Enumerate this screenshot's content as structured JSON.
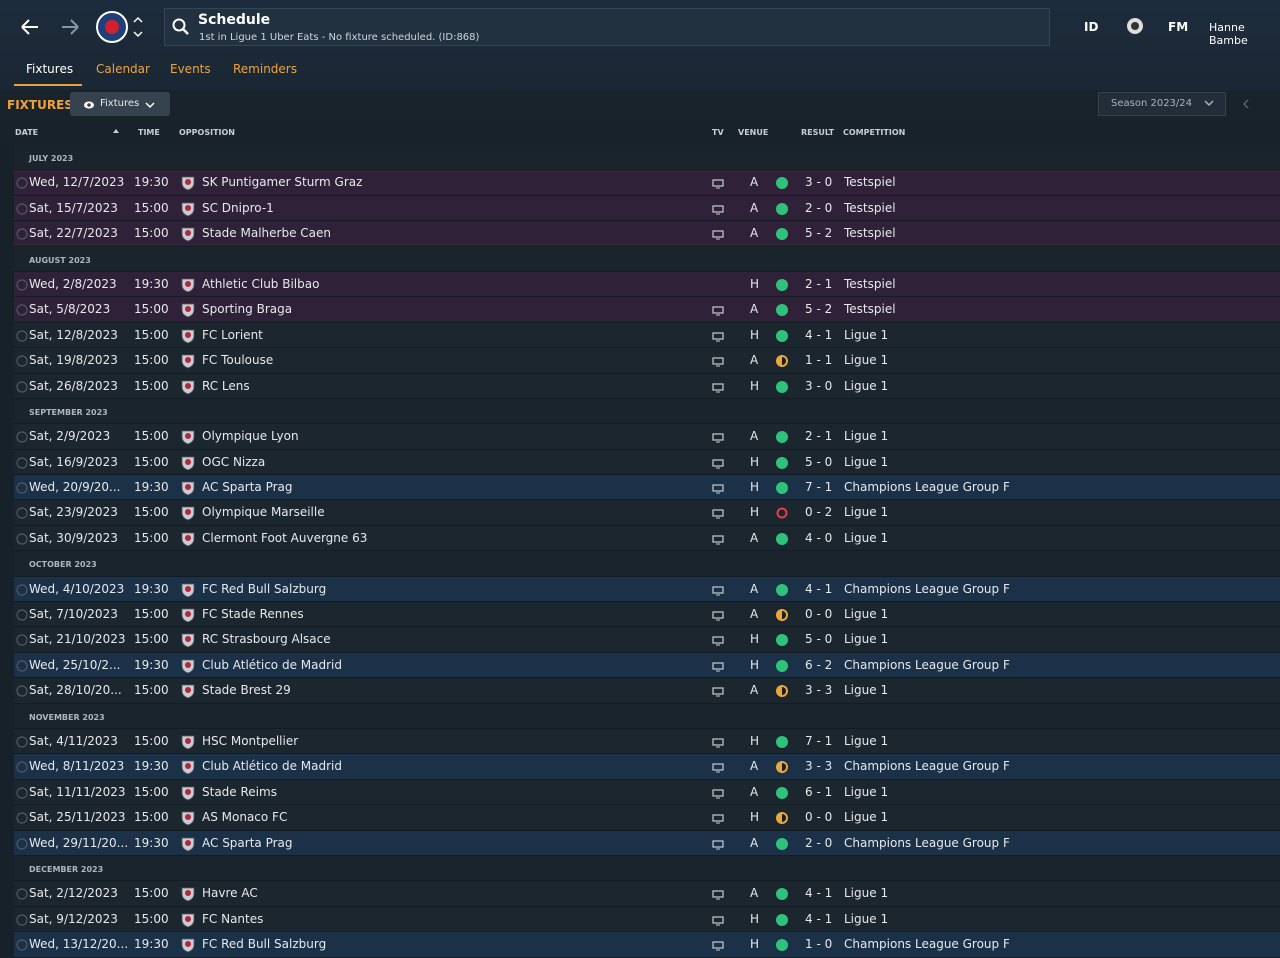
{
  "header": {
    "title": "Schedule",
    "subtitle": "1st in Ligue 1 Uber Eats - No fixture scheduled. (ID:868)",
    "right": [
      "ID",
      "FM",
      "Hanne Bambe"
    ]
  },
  "tabs": {
    "items": [
      "Fixtures",
      "Calendar",
      "Events",
      "Reminders"
    ],
    "active": 0
  },
  "toolbar": {
    "section": "FIXTURES",
    "filter": "Fixtures",
    "season": "Season 2023/24"
  },
  "columns": [
    "DATE",
    "TIME",
    "OPPOSITION",
    "TV",
    "VENUE",
    "RESULT",
    "COMPETITION"
  ],
  "outcome_colors": {
    "win": "#2fc27a",
    "draw": "#e8a93a",
    "loss": "#e0404a"
  },
  "months": [
    {
      "label": "JULY 2023",
      "fixtures": [
        {
          "date": "Wed, 12/7/2023",
          "time": "19:30",
          "opposition": "SK Puntigamer Sturm Graz",
          "tv": true,
          "venue": "A",
          "outcome": "win",
          "result": "3 - 0",
          "competition": "Testspiel",
          "row_color": "#2f2238"
        },
        {
          "date": "Sat, 15/7/2023",
          "time": "15:00",
          "opposition": "SC Dnipro-1",
          "tv": true,
          "venue": "A",
          "outcome": "win",
          "result": "2 - 0",
          "competition": "Testspiel",
          "row_color": "#2f2238"
        },
        {
          "date": "Sat, 22/7/2023",
          "time": "15:00",
          "opposition": "Stade Malherbe Caen",
          "tv": true,
          "venue": "A",
          "outcome": "win",
          "result": "5 - 2",
          "competition": "Testspiel",
          "row_color": "#2f2238"
        }
      ]
    },
    {
      "label": "AUGUST 2023",
      "fixtures": [
        {
          "date": "Wed, 2/8/2023",
          "time": "19:30",
          "opposition": "Athletic Club Bilbao",
          "tv": false,
          "venue": "H",
          "outcome": "win",
          "result": "2 - 1",
          "competition": "Testspiel",
          "row_color": "#2f2238"
        },
        {
          "date": "Sat, 5/8/2023",
          "time": "15:00",
          "opposition": "Sporting Braga",
          "tv": true,
          "venue": "A",
          "outcome": "win",
          "result": "5 - 2",
          "competition": "Testspiel",
          "row_color": "#2f2238"
        },
        {
          "date": "Sat, 12/8/2023",
          "time": "15:00",
          "opposition": "FC Lorient",
          "tv": true,
          "venue": "H",
          "outcome": "win",
          "result": "4 - 1",
          "competition": "Ligue 1",
          "row_color": "#1c262e"
        },
        {
          "date": "Sat, 19/8/2023",
          "time": "15:00",
          "opposition": "FC Toulouse",
          "tv": true,
          "venue": "A",
          "outcome": "draw",
          "result": "1 - 1",
          "competition": "Ligue 1",
          "row_color": "#1c262e"
        },
        {
          "date": "Sat, 26/8/2023",
          "time": "15:00",
          "opposition": "RC Lens",
          "tv": true,
          "venue": "H",
          "outcome": "win",
          "result": "3 - 0",
          "competition": "Ligue 1",
          "row_color": "#1c262e"
        }
      ]
    },
    {
      "label": "SEPTEMBER 2023",
      "fixtures": [
        {
          "date": "Sat, 2/9/2023",
          "time": "15:00",
          "opposition": "Olympique Lyon",
          "tv": true,
          "venue": "A",
          "outcome": "win",
          "result": "2 - 1",
          "competition": "Ligue 1",
          "row_color": "#1c262e"
        },
        {
          "date": "Sat, 16/9/2023",
          "time": "15:00",
          "opposition": "OGC Nizza",
          "tv": true,
          "venue": "H",
          "outcome": "win",
          "result": "5 - 0",
          "competition": "Ligue 1",
          "row_color": "#1c262e"
        },
        {
          "date": "Wed, 20/9/20...",
          "time": "19:30",
          "opposition": "AC Sparta Prag",
          "tv": true,
          "venue": "H",
          "outcome": "win",
          "result": "7 - 1",
          "competition": "Champions League Group F",
          "row_color": "#1a3147"
        },
        {
          "date": "Sat, 23/9/2023",
          "time": "15:00",
          "opposition": "Olympique Marseille",
          "tv": true,
          "venue": "H",
          "outcome": "loss",
          "result": "0 - 2",
          "competition": "Ligue 1",
          "row_color": "#1c262e"
        },
        {
          "date": "Sat, 30/9/2023",
          "time": "15:00",
          "opposition": "Clermont Foot Auvergne 63",
          "tv": true,
          "venue": "A",
          "outcome": "win",
          "result": "4 - 0",
          "competition": "Ligue 1",
          "row_color": "#1c262e"
        }
      ]
    },
    {
      "label": "OCTOBER 2023",
      "fixtures": [
        {
          "date": "Wed, 4/10/2023",
          "time": "19:30",
          "opposition": "FC Red Bull Salzburg",
          "tv": true,
          "venue": "A",
          "outcome": "win",
          "result": "4 - 1",
          "competition": "Champions League Group F",
          "row_color": "#1a3147"
        },
        {
          "date": "Sat, 7/10/2023",
          "time": "15:00",
          "opposition": "FC Stade Rennes",
          "tv": true,
          "venue": "A",
          "outcome": "draw",
          "result": "0 - 0",
          "competition": "Ligue 1",
          "row_color": "#1c262e"
        },
        {
          "date": "Sat, 21/10/2023",
          "time": "15:00",
          "opposition": "RC Strasbourg Alsace",
          "tv": true,
          "venue": "H",
          "outcome": "win",
          "result": "5 - 0",
          "competition": "Ligue 1",
          "row_color": "#1c262e"
        },
        {
          "date": "Wed, 25/10/2...",
          "time": "19:30",
          "opposition": "Club Atlético de Madrid",
          "tv": true,
          "venue": "H",
          "outcome": "win",
          "result": "6 - 2",
          "competition": "Champions League Group F",
          "row_color": "#1a3147"
        },
        {
          "date": "Sat, 28/10/20...",
          "time": "15:00",
          "opposition": "Stade Brest 29",
          "tv": true,
          "venue": "A",
          "outcome": "draw",
          "result": "3 - 3",
          "competition": "Ligue 1",
          "row_color": "#1c262e"
        }
      ]
    },
    {
      "label": "NOVEMBER 2023",
      "fixtures": [
        {
          "date": "Sat, 4/11/2023",
          "time": "15:00",
          "opposition": "HSC Montpellier",
          "tv": true,
          "venue": "H",
          "outcome": "win",
          "result": "7 - 1",
          "competition": "Ligue 1",
          "row_color": "#1c262e"
        },
        {
          "date": "Wed, 8/11/2023",
          "time": "19:30",
          "opposition": "Club Atlético de Madrid",
          "tv": true,
          "venue": "A",
          "outcome": "draw",
          "result": "3 - 3",
          "competition": "Champions League Group F",
          "row_color": "#1a3147"
        },
        {
          "date": "Sat, 11/11/2023",
          "time": "15:00",
          "opposition": "Stade Reims",
          "tv": true,
          "venue": "A",
          "outcome": "win",
          "result": "6 - 1",
          "competition": "Ligue 1",
          "row_color": "#1c262e"
        },
        {
          "date": "Sat, 25/11/2023",
          "time": "15:00",
          "opposition": "AS Monaco FC",
          "tv": true,
          "venue": "H",
          "outcome": "draw",
          "result": "0 - 0",
          "competition": "Ligue 1",
          "row_color": "#1c262e"
        },
        {
          "date": "Wed, 29/11/20...",
          "time": "19:30",
          "opposition": "AC Sparta Prag",
          "tv": true,
          "venue": "A",
          "outcome": "win",
          "result": "2 - 0",
          "competition": "Champions League Group F",
          "row_color": "#1a3147"
        }
      ]
    },
    {
      "label": "DECEMBER 2023",
      "fixtures": [
        {
          "date": "Sat, 2/12/2023",
          "time": "15:00",
          "opposition": "Havre AC",
          "tv": true,
          "venue": "A",
          "outcome": "win",
          "result": "4 - 1",
          "competition": "Ligue 1",
          "row_color": "#1c262e"
        },
        {
          "date": "Sat, 9/12/2023",
          "time": "15:00",
          "opposition": "FC Nantes",
          "tv": true,
          "venue": "H",
          "outcome": "win",
          "result": "4 - 1",
          "competition": "Ligue 1",
          "row_color": "#1c262e"
        },
        {
          "date": "Wed, 13/12/20...",
          "time": "19:30",
          "opposition": "FC Red Bull Salzburg",
          "tv": true,
          "venue": "H",
          "outcome": "win",
          "result": "1 - 0",
          "competition": "Champions League Group F",
          "row_color": "#1a3147"
        }
      ]
    }
  ]
}
